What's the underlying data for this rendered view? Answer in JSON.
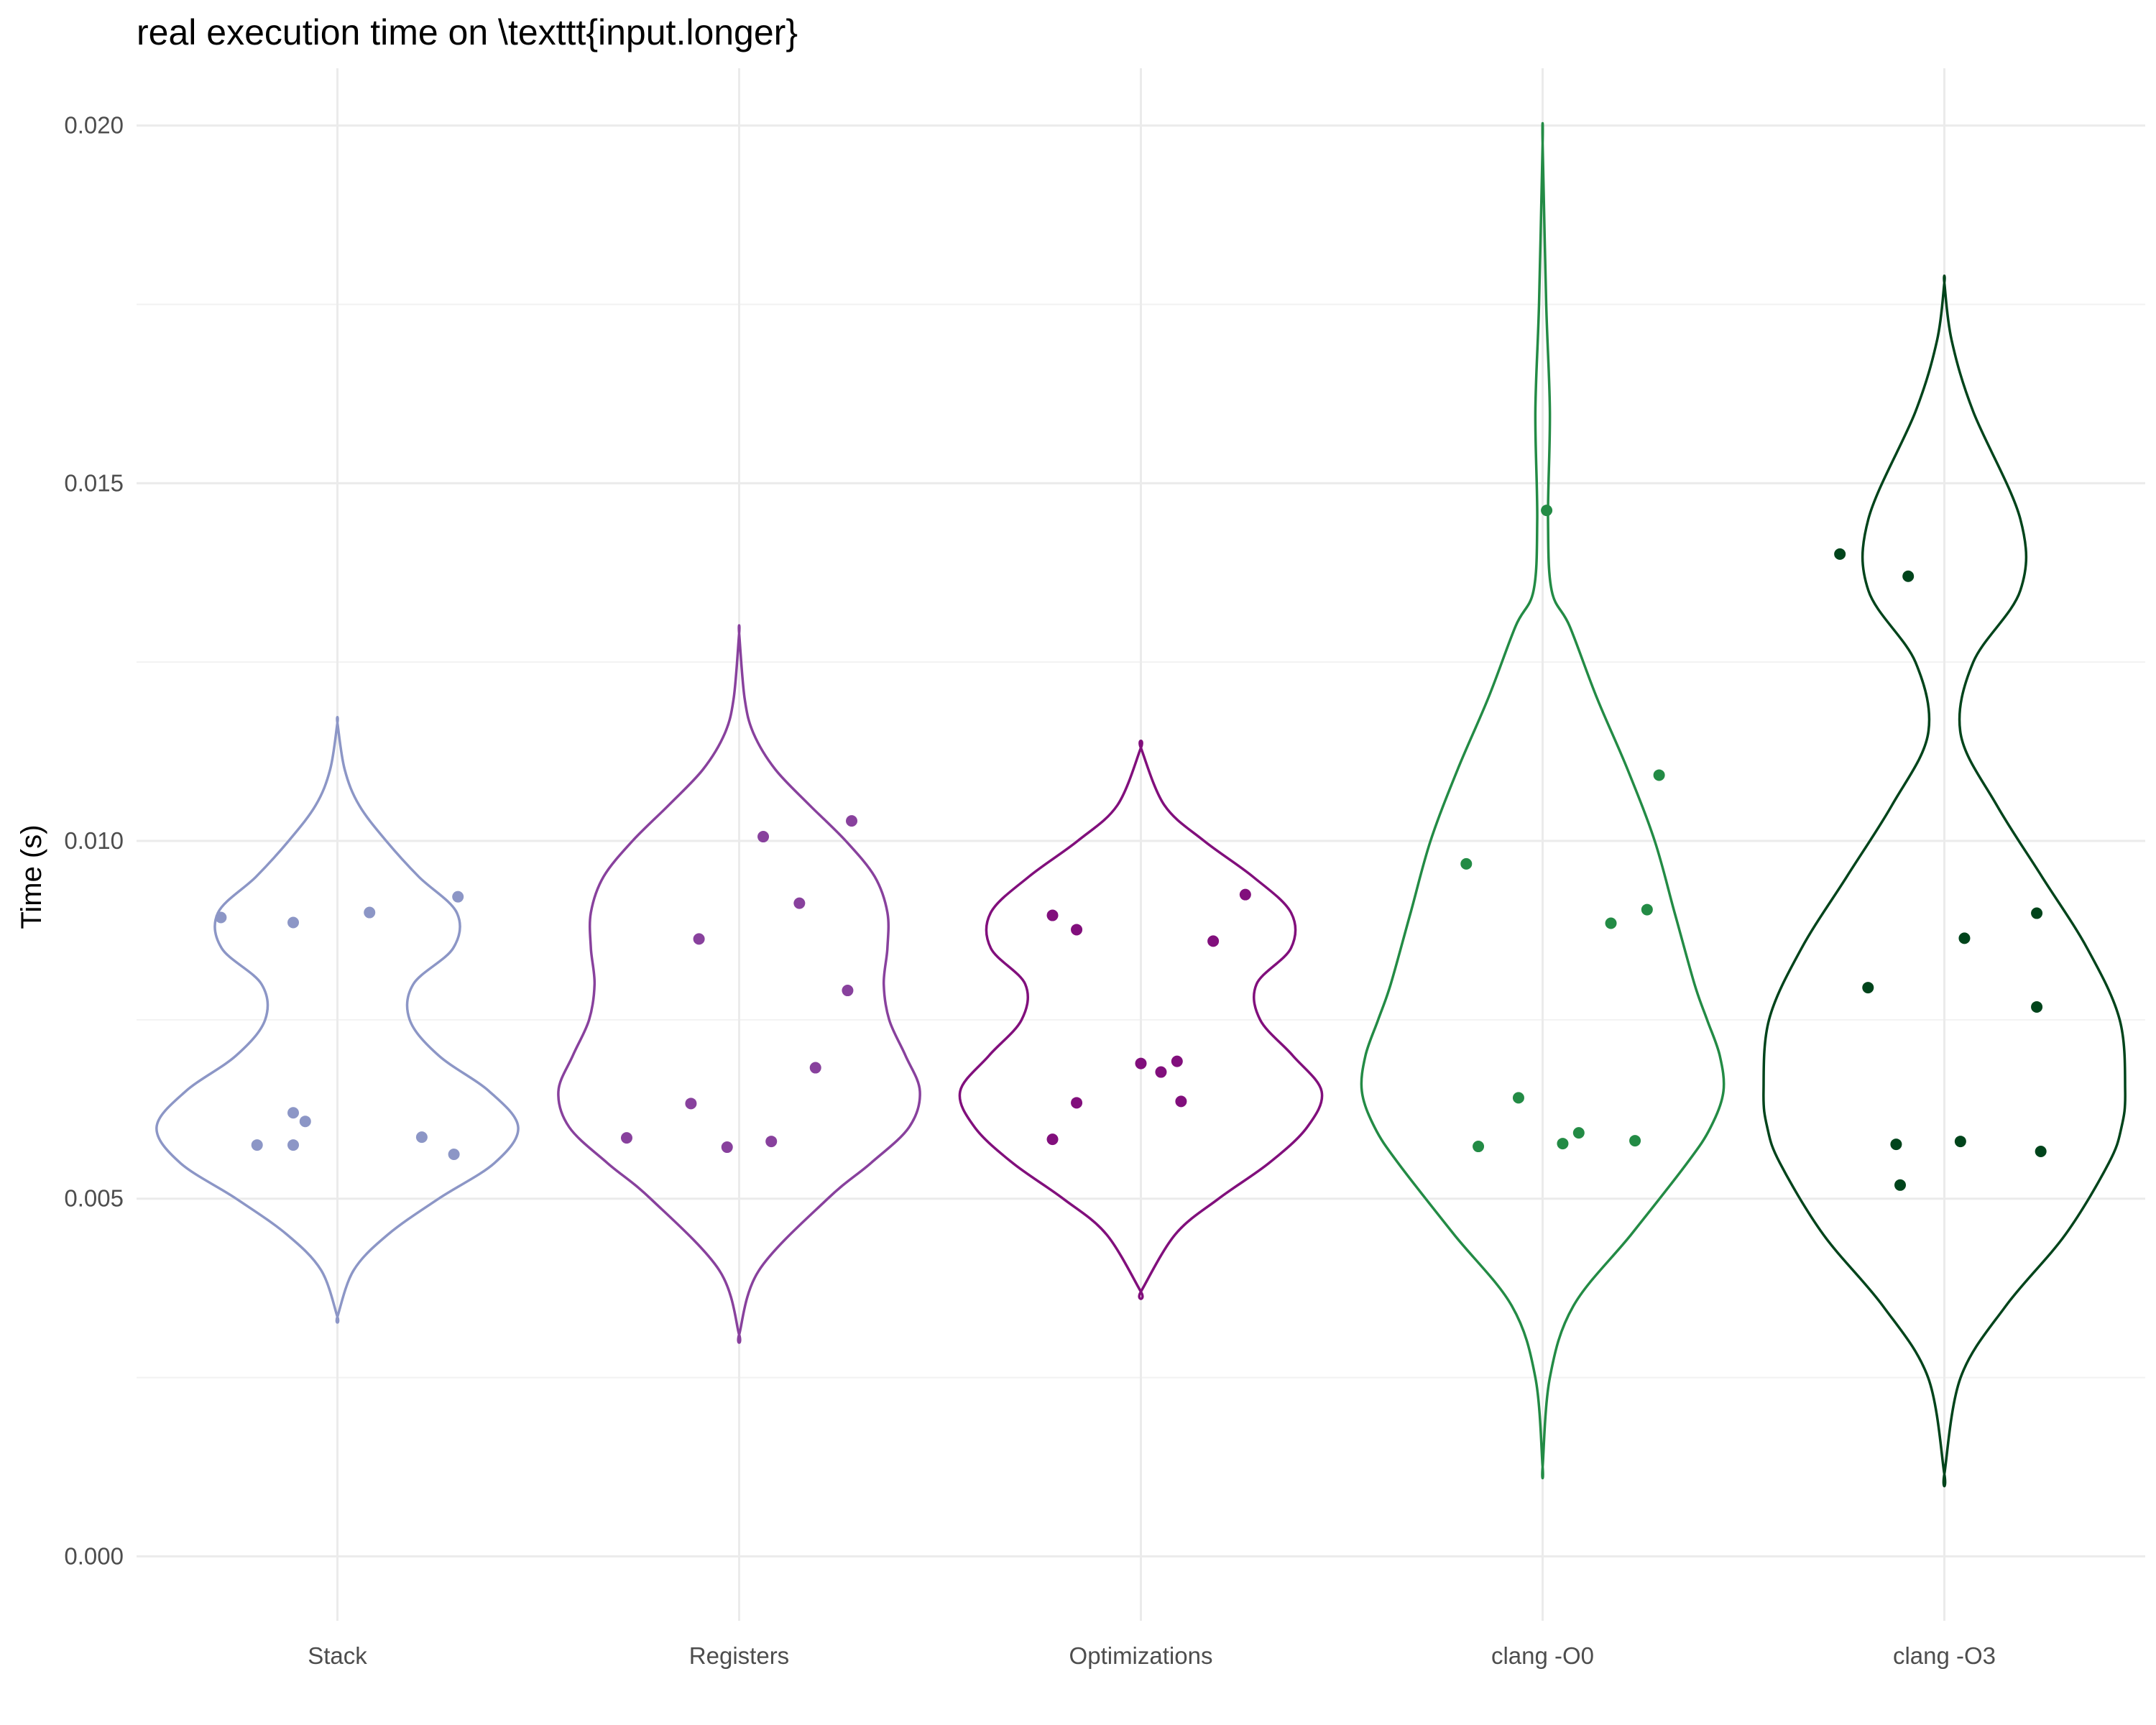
{
  "chart_data": {
    "type": "violin",
    "title": "real execution time on \\texttt{input.longer}",
    "xlabel": "",
    "ylabel": "Time (s)",
    "ylim": [
      -0.0009,
      0.0208
    ],
    "yticks": [
      0.0,
      0.005,
      0.01,
      0.015,
      0.02
    ],
    "ytick_labels": [
      "0.000",
      "0.005",
      "0.010",
      "0.015",
      "0.020"
    ],
    "grid": true,
    "legend": "none",
    "categories": [
      "Stack",
      "Registers",
      "Optimizations",
      "clang -O0",
      "clang -O3"
    ],
    "series": [
      {
        "category": "Stack",
        "color": "#8c96c6",
        "ymin": 0.00335,
        "ymax": 0.01165,
        "profile": [
          [
            0.00335,
            0.0
          ],
          [
            0.004,
            0.09
          ],
          [
            0.0045,
            0.28
          ],
          [
            0.005,
            0.56
          ],
          [
            0.0055,
            0.87
          ],
          [
            0.006,
            1.0
          ],
          [
            0.0065,
            0.84
          ],
          [
            0.007,
            0.56
          ],
          [
            0.0075,
            0.4
          ],
          [
            0.008,
            0.42
          ],
          [
            0.0085,
            0.64
          ],
          [
            0.009,
            0.66
          ],
          [
            0.0095,
            0.45
          ],
          [
            0.01,
            0.27
          ],
          [
            0.0105,
            0.12
          ],
          [
            0.011,
            0.04
          ],
          [
            0.01165,
            0.0
          ]
        ],
        "points_x": [
          -0.29,
          -0.2,
          -0.11,
          -0.11,
          -0.08,
          -0.11,
          0.08,
          0.21,
          0.29,
          0.3
        ],
        "points_y": [
          0.00893,
          0.00575,
          0.0062,
          0.00575,
          0.00608,
          0.00886,
          0.009,
          0.00586,
          0.00562,
          0.00922
        ]
      },
      {
        "category": "Registers",
        "color": "#88419d",
        "ymin": 0.0031,
        "ymax": 0.0129,
        "profile": [
          [
            0.0031,
            0.0
          ],
          [
            0.004,
            0.11
          ],
          [
            0.005,
            0.49
          ],
          [
            0.0055,
            0.73
          ],
          [
            0.006,
            0.94
          ],
          [
            0.0065,
            1.0
          ],
          [
            0.007,
            0.92
          ],
          [
            0.0075,
            0.83
          ],
          [
            0.008,
            0.8
          ],
          [
            0.0085,
            0.82
          ],
          [
            0.009,
            0.82
          ],
          [
            0.0095,
            0.75
          ],
          [
            0.01,
            0.59
          ],
          [
            0.0105,
            0.39
          ],
          [
            0.011,
            0.2
          ],
          [
            0.0115,
            0.08
          ],
          [
            0.012,
            0.03
          ],
          [
            0.0129,
            0.0
          ]
        ],
        "points_x": [
          -0.28,
          -0.1,
          -0.12,
          -0.03,
          0.06,
          0.08,
          0.15,
          0.19,
          0.27,
          0.28
        ],
        "points_y": [
          0.00585,
          0.00863,
          0.00633,
          0.00572,
          0.01006,
          0.0058,
          0.00913,
          0.00683,
          0.00791,
          0.01028
        ]
      },
      {
        "category": "Optimizations",
        "color": "#810f7c",
        "ymin": 0.0037,
        "ymax": 0.0113,
        "profile": [
          [
            0.0037,
            0.0
          ],
          [
            0.0045,
            0.19
          ],
          [
            0.005,
            0.43
          ],
          [
            0.0055,
            0.71
          ],
          [
            0.006,
            0.92
          ],
          [
            0.0065,
            1.0
          ],
          [
            0.007,
            0.84
          ],
          [
            0.0075,
            0.66
          ],
          [
            0.008,
            0.64
          ],
          [
            0.0085,
            0.83
          ],
          [
            0.009,
            0.83
          ],
          [
            0.0095,
            0.62
          ],
          [
            0.01,
            0.35
          ],
          [
            0.0105,
            0.13
          ],
          [
            0.0113,
            0.0
          ]
        ],
        "points_x": [
          -0.22,
          -0.22,
          -0.16,
          -0.16,
          0.0,
          0.05,
          0.09,
          0.1,
          0.18,
          0.26
        ],
        "points_y": [
          0.00583,
          0.00896,
          0.00634,
          0.00876,
          0.00689,
          0.00677,
          0.00692,
          0.00636,
          0.0086,
          0.00925
        ]
      },
      {
        "category": "clang -O0",
        "color": "#238b45",
        "ymin": 0.00125,
        "ymax": 0.01975,
        "profile": [
          [
            0.00125,
            0.0
          ],
          [
            0.0025,
            0.04
          ],
          [
            0.0035,
            0.17
          ],
          [
            0.0045,
            0.49
          ],
          [
            0.0055,
            0.8
          ],
          [
            0.006,
            0.93
          ],
          [
            0.0065,
            1.0
          ],
          [
            0.007,
            0.98
          ],
          [
            0.0075,
            0.91
          ],
          [
            0.008,
            0.84
          ],
          [
            0.009,
            0.73
          ],
          [
            0.01,
            0.62
          ],
          [
            0.011,
            0.47
          ],
          [
            0.012,
            0.3
          ],
          [
            0.013,
            0.15
          ],
          [
            0.0135,
            0.05
          ],
          [
            0.0145,
            0.03
          ],
          [
            0.016,
            0.04
          ],
          [
            0.0175,
            0.02
          ],
          [
            0.01975,
            0.0
          ]
        ],
        "points_x": [
          -0.19,
          -0.16,
          -0.06,
          0.01,
          0.05,
          0.09,
          0.17,
          0.23,
          0.29,
          0.26
        ],
        "points_y": [
          0.00968,
          0.00573,
          0.00641,
          0.01462,
          0.00577,
          0.00592,
          0.00885,
          0.00581,
          0.01092,
          0.00904
        ]
      },
      {
        "category": "clang -O3",
        "color": "#00441b",
        "ymin": 0.00115,
        "ymax": 0.0178,
        "profile": [
          [
            0.00115,
            0.0
          ],
          [
            0.0025,
            0.09
          ],
          [
            0.0035,
            0.34
          ],
          [
            0.0045,
            0.67
          ],
          [
            0.0055,
            0.91
          ],
          [
            0.006,
            0.98
          ],
          [
            0.0065,
            1.0
          ],
          [
            0.0075,
            0.97
          ],
          [
            0.0085,
            0.79
          ],
          [
            0.0095,
            0.54
          ],
          [
            0.0105,
            0.29
          ],
          [
            0.0115,
            0.09
          ],
          [
            0.0125,
            0.16
          ],
          [
            0.0135,
            0.42
          ],
          [
            0.0145,
            0.42
          ],
          [
            0.016,
            0.16
          ],
          [
            0.017,
            0.04
          ],
          [
            0.0178,
            0.0
          ]
        ],
        "points_x": [
          -0.26,
          -0.19,
          -0.12,
          -0.11,
          -0.09,
          0.04,
          0.05,
          0.23,
          0.23,
          0.24
        ],
        "points_y": [
          0.01401,
          0.00795,
          0.00576,
          0.00519,
          0.0137,
          0.0058,
          0.00864,
          0.00899,
          0.00768,
          0.00566
        ]
      }
    ]
  }
}
